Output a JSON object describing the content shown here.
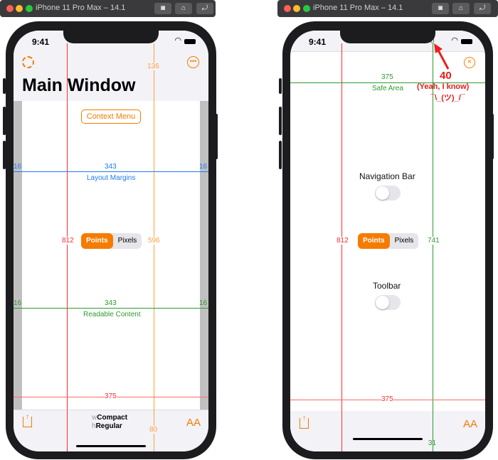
{
  "windows": [
    {
      "title": "iPhone 11 Pro Max – 14.1",
      "buttons": [
        "screenshot",
        "home",
        "rotate"
      ]
    },
    {
      "title": "iPhone 11 Pro Max – 14.1",
      "buttons": [
        "screenshot",
        "home",
        "rotate"
      ]
    }
  ],
  "status": {
    "time": "9:41"
  },
  "left": {
    "title": "Main Window",
    "context_menu": "Context Menu",
    "nav_height": "136",
    "layout_margins": {
      "width": "343",
      "label": "Layout Margins",
      "left": "16",
      "right": "16"
    },
    "readable": {
      "width": "343",
      "label": "Readable Content",
      "left": "16",
      "right": "16"
    },
    "height": "812",
    "safe_height": "596",
    "width": "375",
    "segment": [
      "Points",
      "Pixels"
    ],
    "selected": "Points",
    "size_class": {
      "w_prefix": "w",
      "w": "Compact",
      "h_prefix": "h",
      "h": "Regular"
    },
    "toolbar_height": "80",
    "text_size": "AA"
  },
  "right": {
    "top_inset": "0",
    "safe_area": {
      "width": "375",
      "label": "Safe Area"
    },
    "annotation": {
      "value": "40",
      "note": "(Yeah, I know)",
      "shrug": "¯\\_(ツ)_/¯"
    },
    "nav_bar_label": "Navigation Bar",
    "nav_bar_on": false,
    "toolbar_label": "Toolbar",
    "toolbar_on": false,
    "height": "812",
    "safe_height": "741",
    "width": "375",
    "segment": [
      "Points",
      "Pixels"
    ],
    "selected": "Points",
    "bottom_inset": "31",
    "text_size": "AA"
  },
  "colors": {
    "accent": "#f57c00",
    "red": "#ff2d2d",
    "blue": "#1e7cf0",
    "green": "#2e9a2e",
    "orange": "#ff9f40"
  }
}
